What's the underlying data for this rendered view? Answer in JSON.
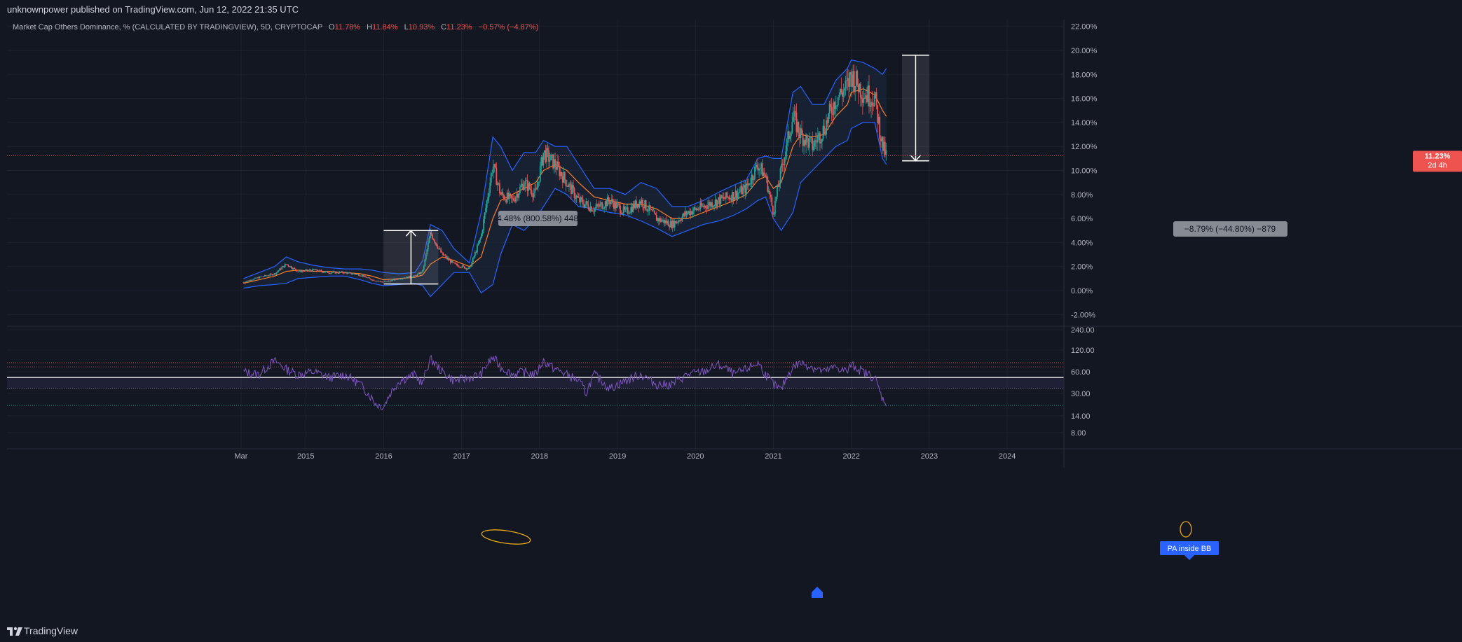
{
  "header": {
    "published_text": "unknownpower published on TradingView.com, Jun 12, 2022 21:35 UTC"
  },
  "footer": {
    "brand": "TradingView"
  },
  "legend": {
    "symbol": "Market Cap Others Dominance, % (CALCULATED BY TRADINGVIEW), 5D, CRYPTOCAP",
    "o_label": "O",
    "o": "11.78%",
    "h_label": "H",
    "h": "11.84%",
    "l_label": "L",
    "l": "10.93%",
    "c_label": "C",
    "c": "11.23%",
    "change": "−0.57% (−4.87%)"
  },
  "price_label": {
    "value": "11.23%",
    "countdown": "2d 4h"
  },
  "measure_up": {
    "text": "4.48% (800.58%) 448"
  },
  "measure_down": {
    "text": "−8.79% (−44.80%) −879"
  },
  "annotation": {
    "text": "PA inside BB"
  },
  "colors": {
    "background": "#131722",
    "grid": "#1e222d",
    "text": "#b2b5be",
    "bull": "#26a69a",
    "bear": "#ef5350",
    "bb_band": "#2962ff",
    "bb_fill": "#1c2a40",
    "ma": "#ff7f24",
    "rsi": "#7e57c2",
    "annotation": "#e7a81a",
    "accent_blue": "#2962ff",
    "last_price": "#ef5350"
  },
  "chart_data": [
    {
      "type": "candlestick",
      "ylabel": "",
      "ylim": [
        -3,
        23
      ],
      "y_ticks": [
        "22.00%",
        "20.00%",
        "18.00%",
        "16.00%",
        "14.00%",
        "12.00%",
        "10.00%",
        "8.00%",
        "6.00%",
        "4.00%",
        "2.00%",
        "0.00%",
        "-2.00%"
      ],
      "x_ticks": [
        "Mar",
        "2015",
        "2016",
        "2017",
        "2018",
        "2019",
        "2020",
        "2021",
        "2022",
        "2023",
        "2024"
      ],
      "x": [
        2014.2,
        2014.4,
        2014.6,
        2014.75,
        2014.9,
        2015.1,
        2015.3,
        2015.5,
        2015.7,
        2015.85,
        2016.0,
        2016.2,
        2016.4,
        2016.5,
        2016.6,
        2016.75,
        2016.9,
        2017.1,
        2017.25,
        2017.4,
        2017.5,
        2017.65,
        2017.8,
        2017.95,
        2018.05,
        2018.2,
        2018.35,
        2018.5,
        2018.7,
        2018.9,
        2019.1,
        2019.3,
        2019.5,
        2019.7,
        2019.9,
        2020.1,
        2020.3,
        2020.5,
        2020.65,
        2020.8,
        2020.9,
        2021.0,
        2021.1,
        2021.25,
        2021.35,
        2021.5,
        2021.65,
        2021.8,
        2021.95,
        2022.0,
        2022.15,
        2022.3,
        2022.4,
        2022.45
      ],
      "close": [
        0.7,
        1.1,
        1.4,
        2.2,
        1.6,
        1.7,
        1.5,
        1.5,
        1.3,
        0.9,
        0.7,
        1.0,
        1.2,
        1.6,
        4.8,
        3.0,
        2.2,
        1.8,
        4.5,
        10.5,
        8.0,
        7.5,
        9.0,
        8.0,
        11.5,
        10.5,
        9.0,
        7.5,
        6.8,
        7.5,
        6.5,
        7.5,
        6.0,
        5.5,
        6.5,
        7.0,
        7.5,
        8.0,
        8.5,
        10.5,
        9.5,
        6.5,
        10.0,
        14.5,
        13.0,
        12.0,
        13.5,
        16.0,
        17.0,
        18.0,
        16.5,
        16.0,
        12.0,
        11.23
      ],
      "ma": [
        0.6,
        0.9,
        1.2,
        1.6,
        1.7,
        1.6,
        1.6,
        1.5,
        1.4,
        1.2,
        0.9,
        1.0,
        1.1,
        1.3,
        2.2,
        2.8,
        2.5,
        2.0,
        2.8,
        6.0,
        7.5,
        8.0,
        8.5,
        9.0,
        10.0,
        10.5,
        10.0,
        9.0,
        7.8,
        7.5,
        7.2,
        7.2,
        6.8,
        6.0,
        6.0,
        6.5,
        7.0,
        7.5,
        8.0,
        9.2,
        9.5,
        8.5,
        9.0,
        12.0,
        13.0,
        12.8,
        13.0,
        14.5,
        15.5,
        16.5,
        16.8,
        16.3,
        15.0,
        14.5
      ],
      "bb_upper": [
        1.0,
        1.5,
        2.0,
        2.8,
        2.4,
        2.1,
        1.9,
        1.8,
        1.8,
        1.7,
        1.5,
        1.4,
        1.5,
        2.5,
        5.5,
        5.0,
        3.5,
        2.3,
        6.5,
        12.8,
        12.0,
        10.0,
        11.5,
        11.5,
        12.5,
        12.0,
        12.0,
        10.5,
        8.5,
        8.5,
        8.0,
        9.0,
        8.5,
        7.0,
        7.0,
        7.5,
        8.2,
        8.8,
        9.2,
        11.0,
        11.2,
        11.0,
        11.0,
        16.5,
        17.0,
        15.5,
        15.5,
        17.5,
        18.5,
        19.2,
        19.0,
        18.5,
        18.0,
        18.5
      ],
      "bb_lower": [
        0.2,
        0.4,
        0.5,
        0.6,
        1.0,
        1.1,
        1.2,
        1.2,
        0.9,
        0.6,
        0.4,
        0.5,
        0.6,
        0.4,
        -0.5,
        0.5,
        1.5,
        1.5,
        -0.2,
        0.5,
        3.0,
        5.5,
        5.0,
        6.0,
        7.0,
        8.5,
        8.0,
        7.0,
        6.8,
        6.5,
        6.3,
        5.8,
        5.2,
        4.5,
        5.0,
        5.5,
        5.8,
        6.3,
        6.8,
        7.5,
        7.8,
        6.0,
        5.0,
        6.5,
        9.0,
        10.0,
        11.0,
        12.0,
        12.5,
        13.5,
        14.0,
        14.0,
        11.0,
        10.5
      ],
      "last_price": 11.23
    },
    {
      "type": "line",
      "ylabel": "",
      "y_ticks": [
        "240.00",
        "120.00",
        "60.00",
        "30.00",
        "14.00",
        "8.00"
      ],
      "x": [
        2014.2,
        2014.4,
        2014.6,
        2014.75,
        2014.9,
        2015.1,
        2015.3,
        2015.5,
        2015.7,
        2015.8,
        2015.9,
        2016.0,
        2016.2,
        2016.4,
        2016.5,
        2016.6,
        2016.75,
        2016.9,
        2017.1,
        2017.25,
        2017.4,
        2017.5,
        2017.65,
        2017.8,
        2017.95,
        2018.05,
        2018.2,
        2018.35,
        2018.5,
        2018.6,
        2018.7,
        2018.9,
        2019.1,
        2019.3,
        2019.5,
        2019.7,
        2019.9,
        2020.1,
        2020.3,
        2020.5,
        2020.65,
        2020.8,
        2020.9,
        2021.0,
        2021.1,
        2021.25,
        2021.35,
        2021.5,
        2021.65,
        2021.8,
        2021.95,
        2022.0,
        2022.15,
        2022.3,
        2022.35,
        2022.4,
        2022.45
      ],
      "values": [
        60,
        55,
        85,
        65,
        55,
        60,
        50,
        55,
        40,
        30,
        21,
        19,
        45,
        55,
        40,
        90,
        60,
        45,
        50,
        55,
        95,
        70,
        55,
        60,
        55,
        85,
        65,
        55,
        45,
        30,
        55,
        35,
        45,
        55,
        40,
        40,
        55,
        60,
        75,
        55,
        65,
        80,
        55,
        40,
        33,
        70,
        80,
        70,
        60,
        70,
        60,
        75,
        60,
        50,
        35,
        25,
        22
      ],
      "upper_band": 80,
      "midline": 50,
      "lower_band": 20
    }
  ]
}
